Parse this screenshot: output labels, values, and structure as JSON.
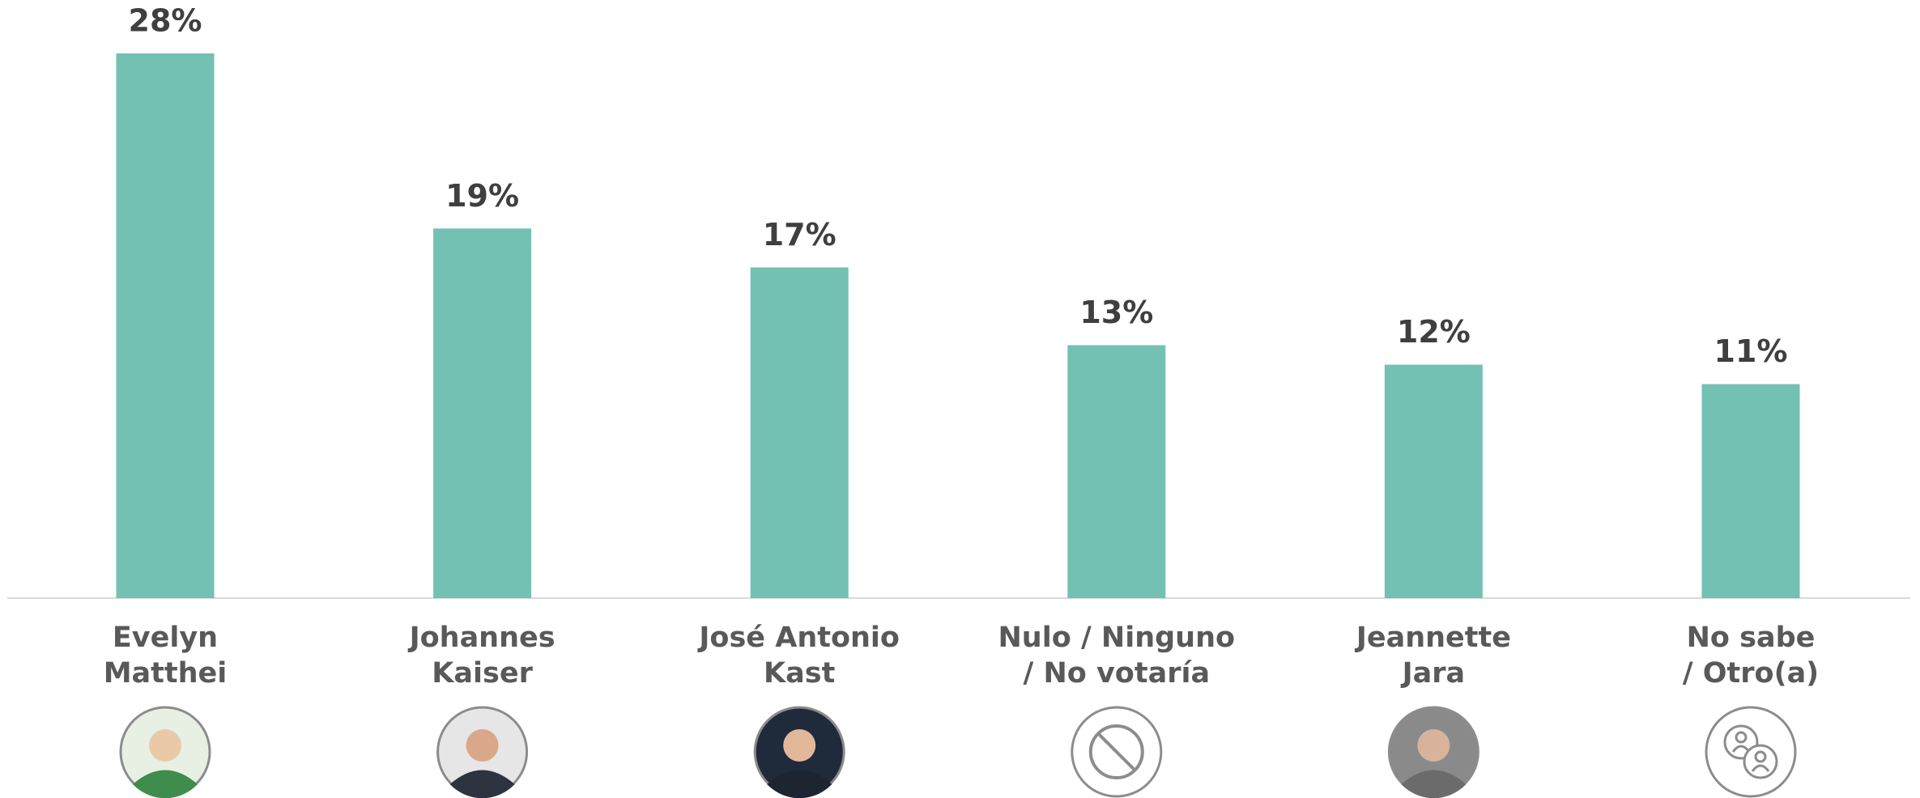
{
  "chart_data": {
    "type": "bar",
    "categories": [
      [
        "Evelyn",
        "Matthei"
      ],
      [
        "Johannes",
        "Kaiser"
      ],
      [
        "José Antonio",
        "Kast"
      ],
      [
        "Nulo / Ninguno",
        "/ No votaría"
      ],
      [
        "Jeannette",
        "Jara"
      ],
      [
        "No sabe",
        "/ Otro(a)"
      ]
    ],
    "values": [
      28,
      19,
      17,
      13,
      12,
      11
    ],
    "value_labels": [
      "28%",
      "19%",
      "17%",
      "13%",
      "12%",
      "11%"
    ],
    "color": "#72c1b3"
  }
}
